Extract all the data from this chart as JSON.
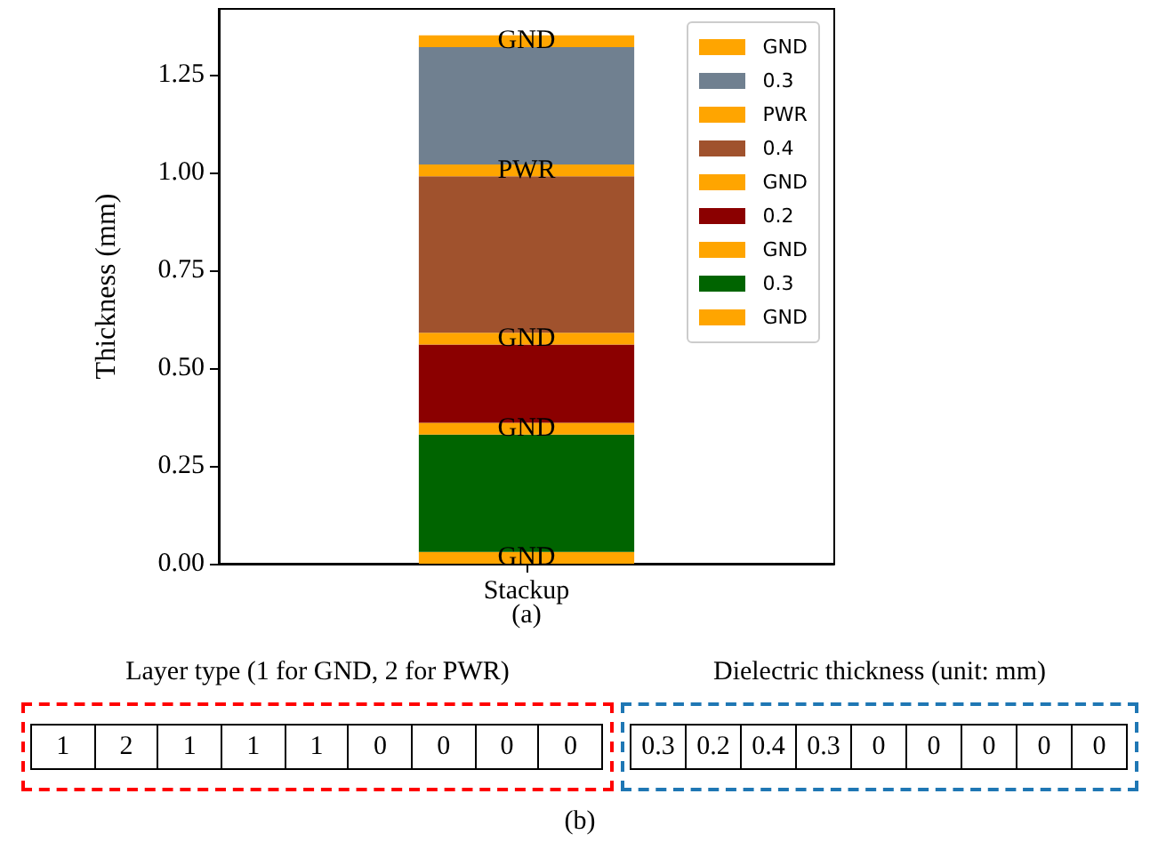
{
  "chart_data": [
    {
      "type": "bar",
      "stacked": true,
      "categories": [
        "Stackup"
      ],
      "ylabel": "Thickness (mm)",
      "ylim": [
        0,
        1.4175
      ],
      "yticks": [
        {
          "value": 0,
          "label": "0.00"
        },
        {
          "value": 0.25,
          "label": "0.25"
        },
        {
          "value": 0.5,
          "label": "0.50"
        },
        {
          "value": 0.75,
          "label": "0.75"
        },
        {
          "value": 1,
          "label": "1.00"
        },
        {
          "value": 1.25,
          "label": "1.25"
        }
      ],
      "legend": "top right",
      "grid": false,
      "annotations": [
        "(a)"
      ],
      "series": [
        {
          "name": "GND",
          "color": "#ffa500",
          "values": [
            0.03
          ],
          "value_labels": [
            "GND"
          ]
        },
        {
          "name": "0.3",
          "color": "#006400",
          "values": [
            0.3
          ]
        },
        {
          "name": "GND",
          "color": "#ffa500",
          "values": [
            0.03
          ],
          "value_labels": [
            "GND"
          ]
        },
        {
          "name": "0.2",
          "color": "#8b0000",
          "values": [
            0.2
          ]
        },
        {
          "name": "GND",
          "color": "#ffa500",
          "values": [
            0.03
          ],
          "value_labels": [
            "GND"
          ]
        },
        {
          "name": "0.4",
          "color": "#a0522d",
          "values": [
            0.4
          ]
        },
        {
          "name": "PWR",
          "color": "#ffa500",
          "values": [
            0.03
          ],
          "value_labels": [
            "PWR"
          ]
        },
        {
          "name": "0.3",
          "color": "#708090",
          "values": [
            0.3
          ]
        },
        {
          "name": "GND",
          "color": "#ffa500",
          "values": [
            0.03
          ],
          "value_labels": [
            "GND"
          ]
        }
      ]
    },
    {
      "type": "other",
      "annotations": [
        "Layer type (1 for GND, 2 for PWR)",
        "Dielectric thickness (unit: mm)",
        "1",
        "2",
        "1",
        "1",
        "1",
        "0",
        "0",
        "0",
        "0",
        "0.3",
        "0.2",
        "0.4",
        "0.3",
        "0",
        "0",
        "0",
        "0",
        "0",
        "(b)"
      ]
    }
  ]
}
